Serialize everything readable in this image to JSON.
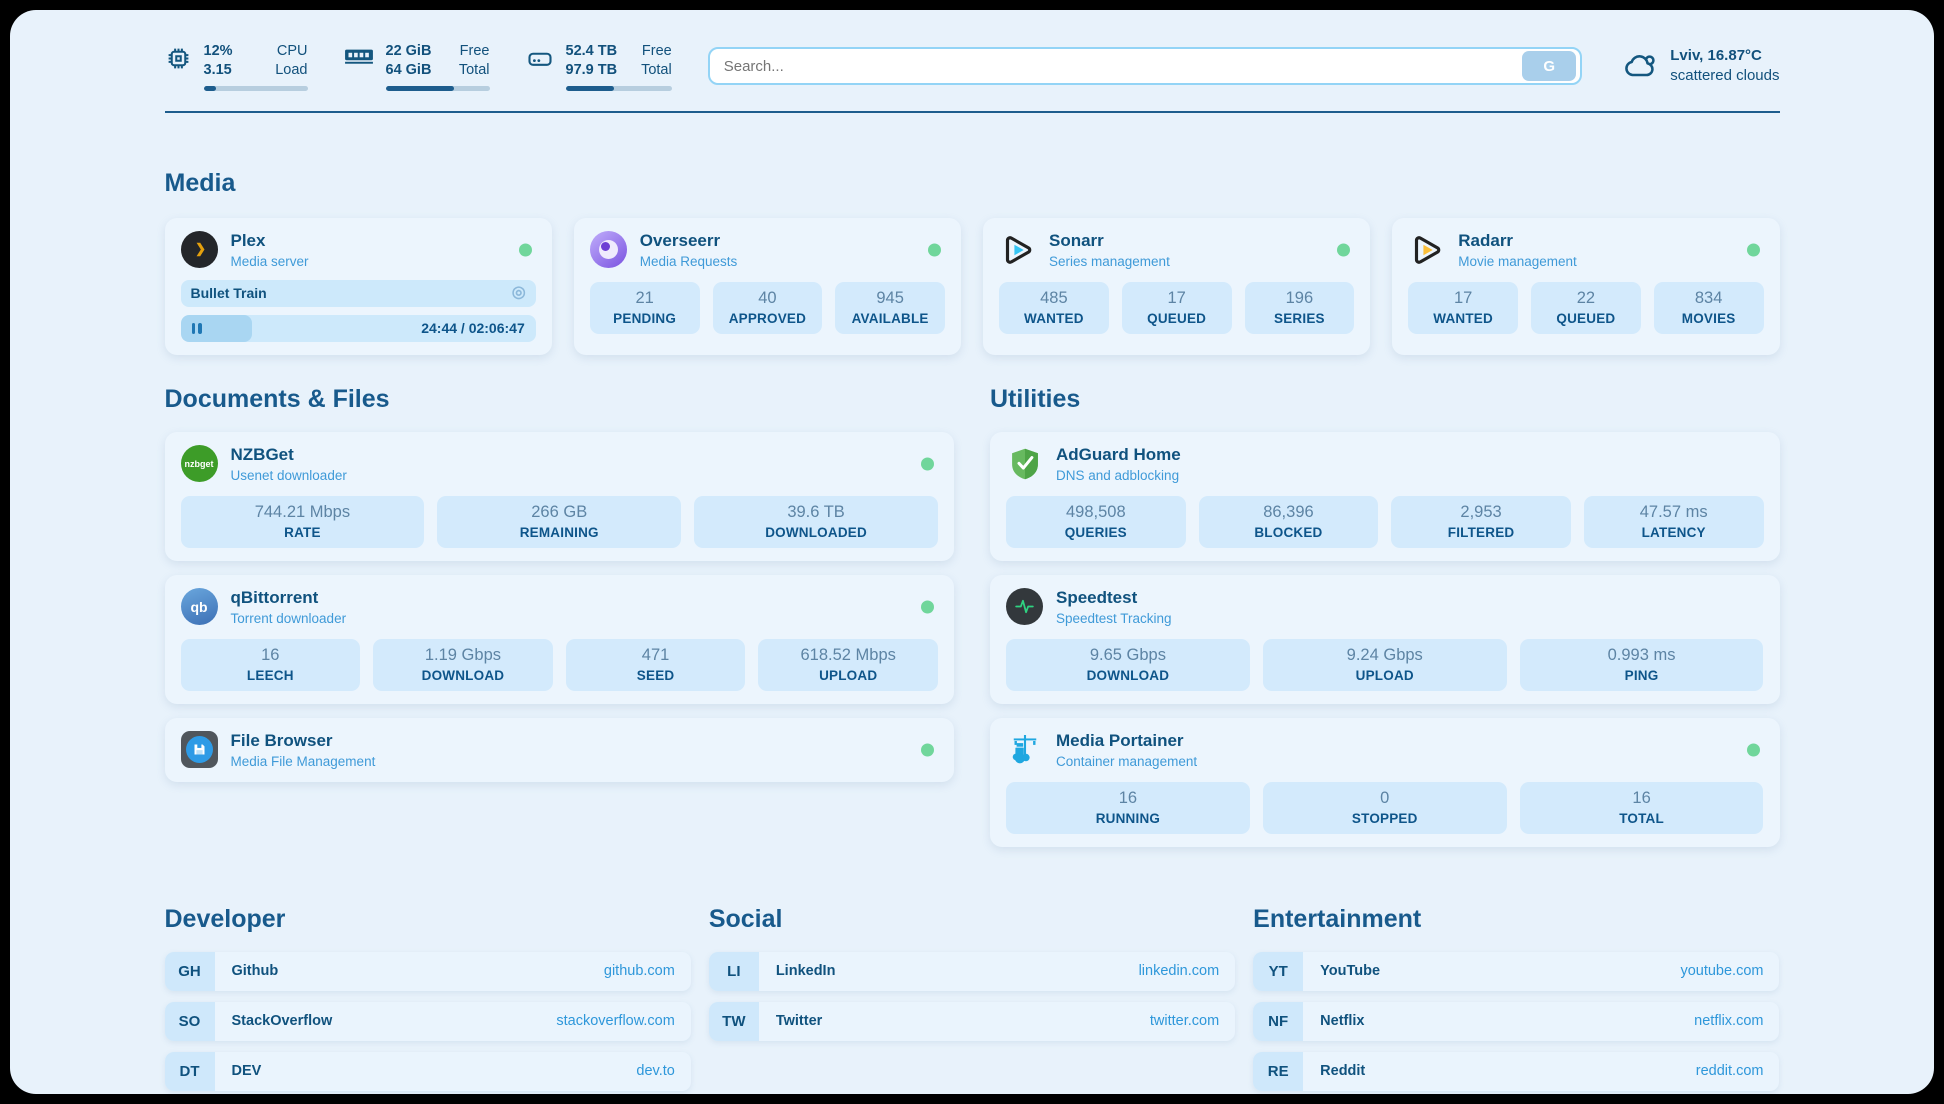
{
  "colors": {
    "accent_dark": "#14577f",
    "accent_light": "#3f9ad8",
    "status_online": "#70d69b",
    "link_url": "#2e97da",
    "progress_fill": "#1d5d8d"
  },
  "icons": {
    "session": "◎"
  },
  "header": {
    "cpu": {
      "value1": "12%",
      "value2": "3.15",
      "label1": "CPU",
      "label2": "Load",
      "progress": 12
    },
    "memory": {
      "value1": "22 GiB",
      "value2": "64 GiB",
      "label1": "Free",
      "label2": "Total",
      "progress": 66
    },
    "disk": {
      "value1": "52.4 TB",
      "value2": "97.9 TB",
      "label1": "Free",
      "label2": "Total",
      "progress": 46
    },
    "search": {
      "placeholder": "Search...",
      "button_label": "G"
    },
    "weather": {
      "location": "Lviv, 16.87°C",
      "condition": "scattered clouds"
    }
  },
  "sections": {
    "media": "Media",
    "documents": "Documents & Files",
    "utilities": "Utilities",
    "developer": "Developer",
    "social": "Social",
    "entertainment": "Entertainment"
  },
  "apps": {
    "plex": {
      "name": "Plex",
      "description": "Media server",
      "now_playing": "Bullet Train",
      "time": "24:44 / 02:06:47",
      "progress": 20
    },
    "overseerr": {
      "name": "Overseerr",
      "description": "Media Requests",
      "stats": [
        {
          "value": "21",
          "label": "PENDING"
        },
        {
          "value": "40",
          "label": "APPROVED"
        },
        {
          "value": "945",
          "label": "AVAILABLE"
        }
      ]
    },
    "sonarr": {
      "name": "Sonarr",
      "description": "Series management",
      "stats": [
        {
          "value": "485",
          "label": "WANTED"
        },
        {
          "value": "17",
          "label": "QUEUED"
        },
        {
          "value": "196",
          "label": "SERIES"
        }
      ]
    },
    "radarr": {
      "name": "Radarr",
      "description": "Movie management",
      "stats": [
        {
          "value": "17",
          "label": "WANTED"
        },
        {
          "value": "22",
          "label": "QUEUED"
        },
        {
          "value": "834",
          "label": "MOVIES"
        }
      ]
    },
    "nzbget": {
      "name": "NZBGet",
      "description": "Usenet downloader",
      "icon_text": "nzbget",
      "stats": [
        {
          "value": "744.21 Mbps",
          "label": "RATE"
        },
        {
          "value": "266 GB",
          "label": "REMAINING"
        },
        {
          "value": "39.6 TB",
          "label": "DOWNLOADED"
        }
      ]
    },
    "qbittorrent": {
      "name": "qBittorrent",
      "description": "Torrent downloader",
      "icon_text": "qb",
      "stats": [
        {
          "value": "16",
          "label": "LEECH"
        },
        {
          "value": "1.19 Gbps",
          "label": "DOWNLOAD"
        },
        {
          "value": "471",
          "label": "SEED"
        },
        {
          "value": "618.52 Mbps",
          "label": "UPLOAD"
        }
      ]
    },
    "filebrowser": {
      "name": "File Browser",
      "description": "Media File Management"
    },
    "adguard": {
      "name": "AdGuard Home",
      "description": "DNS and adblocking",
      "stats": [
        {
          "value": "498,508",
          "label": "QUERIES"
        },
        {
          "value": "86,396",
          "label": "BLOCKED"
        },
        {
          "value": "2,953",
          "label": "FILTERED"
        },
        {
          "value": "47.57 ms",
          "label": "LATENCY"
        }
      ]
    },
    "speedtest": {
      "name": "Speedtest",
      "description": "Speedtest Tracking",
      "stats": [
        {
          "value": "9.65 Gbps",
          "label": "DOWNLOAD"
        },
        {
          "value": "9.24 Gbps",
          "label": "UPLOAD"
        },
        {
          "value": "0.993 ms",
          "label": "PING"
        }
      ]
    },
    "portainer": {
      "name": "Media Portainer",
      "description": "Container management",
      "stats": [
        {
          "value": "16",
          "label": "RUNNING"
        },
        {
          "value": "0",
          "label": "STOPPED"
        },
        {
          "value": "16",
          "label": "TOTAL"
        }
      ]
    }
  },
  "bookmarks": {
    "developer": [
      {
        "abbr": "GH",
        "name": "Github",
        "url": "github.com"
      },
      {
        "abbr": "SO",
        "name": "StackOverflow",
        "url": "stackoverflow.com"
      },
      {
        "abbr": "DT",
        "name": "DEV",
        "url": "dev.to"
      }
    ],
    "social": [
      {
        "abbr": "LI",
        "name": "LinkedIn",
        "url": "linkedin.com"
      },
      {
        "abbr": "TW",
        "name": "Twitter",
        "url": "twitter.com"
      }
    ],
    "entertainment": [
      {
        "abbr": "YT",
        "name": "YouTube",
        "url": "youtube.com"
      },
      {
        "abbr": "NF",
        "name": "Netflix",
        "url": "netflix.com"
      },
      {
        "abbr": "RE",
        "name": "Reddit",
        "url": "reddit.com"
      }
    ]
  }
}
